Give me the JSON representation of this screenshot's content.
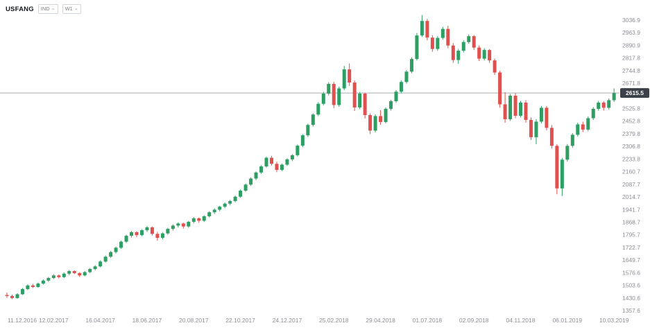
{
  "toolbar": {
    "symbol": "USFANG",
    "instrument_dropdown": "IND",
    "timeframe_dropdown": "W1"
  },
  "colors": {
    "up": "#2e9e63",
    "down": "#e0504e",
    "price_line": "#aaadb5",
    "badge_bg": "#3c4049",
    "badge_text": "#ffffff",
    "axis_text": "#8c8e96",
    "background": "#ffffff"
  },
  "price_axis": {
    "current_price_label": "2615.5"
  },
  "chart_data": {
    "type": "candlestick",
    "title": "USFANG weekly candlestick chart",
    "symbol": "USFANG",
    "timeframe": "W1",
    "current_price": 2615.5,
    "ylim": [
      1245.4,
      3153.1
    ],
    "grid": false,
    "y_ticks": [
      3036.9,
      2963.9,
      2890.9,
      2817.8,
      2744.8,
      2671.8,
      2598.8,
      2525.8,
      2452.8,
      2379.8,
      2306.8,
      2233.8,
      2160.7,
      2087.7,
      2014.7,
      1941.7,
      1868.7,
      1795.7,
      1722.7,
      1649.7,
      1576.6,
      1503.6,
      1430.6,
      1357.6
    ],
    "x_labels": [
      "11.12.2016",
      "12.02.2017",
      "16.04.2017",
      "18.06.2017",
      "20.08.2017",
      "22.10.2017",
      "24.12.2017",
      "25.02.2018",
      "29.04.2018",
      "01.07.2018",
      "02.09.2018",
      "04.11.2018",
      "06.01.2019",
      "10.03.2019"
    ],
    "x_label_weeks": [
      0,
      9,
      18,
      27,
      36,
      45,
      54,
      63,
      72,
      81,
      90,
      99,
      108,
      117
    ],
    "candles_format": [
      "open",
      "high",
      "low",
      "close"
    ],
    "candles": [
      [
        1448,
        1462,
        1432,
        1442
      ],
      [
        1442,
        1450,
        1424,
        1430
      ],
      [
        1430,
        1458,
        1426,
        1452
      ],
      [
        1452,
        1488,
        1448,
        1482
      ],
      [
        1482,
        1510,
        1476,
        1503
      ],
      [
        1503,
        1512,
        1488,
        1494
      ],
      [
        1494,
        1520,
        1490,
        1514
      ],
      [
        1514,
        1538,
        1508,
        1531
      ],
      [
        1531,
        1552,
        1524,
        1546
      ],
      [
        1546,
        1568,
        1540,
        1561
      ],
      [
        1561,
        1566,
        1544,
        1551
      ],
      [
        1551,
        1578,
        1546,
        1571
      ],
      [
        1571,
        1592,
        1562,
        1586
      ],
      [
        1586,
        1590,
        1568,
        1574
      ],
      [
        1574,
        1580,
        1552,
        1561
      ],
      [
        1561,
        1586,
        1556,
        1580
      ],
      [
        1580,
        1604,
        1574,
        1598
      ],
      [
        1598,
        1620,
        1590,
        1613
      ],
      [
        1613,
        1648,
        1608,
        1641
      ],
      [
        1641,
        1676,
        1635,
        1669
      ],
      [
        1669,
        1702,
        1662,
        1696
      ],
      [
        1696,
        1728,
        1688,
        1721
      ],
      [
        1721,
        1762,
        1714,
        1756
      ],
      [
        1756,
        1796,
        1748,
        1790
      ],
      [
        1790,
        1818,
        1780,
        1811
      ],
      [
        1811,
        1816,
        1782,
        1794
      ],
      [
        1794,
        1828,
        1788,
        1822
      ],
      [
        1822,
        1846,
        1812,
        1839
      ],
      [
        1839,
        1844,
        1792,
        1801
      ],
      [
        1801,
        1812,
        1762,
        1778
      ],
      [
        1778,
        1810,
        1770,
        1804
      ],
      [
        1804,
        1836,
        1796,
        1830
      ],
      [
        1830,
        1856,
        1820,
        1849
      ],
      [
        1849,
        1868,
        1838,
        1861
      ],
      [
        1861,
        1866,
        1832,
        1844
      ],
      [
        1844,
        1876,
        1836,
        1871
      ],
      [
        1871,
        1898,
        1862,
        1891
      ],
      [
        1891,
        1896,
        1866,
        1877
      ],
      [
        1877,
        1908,
        1870,
        1903
      ],
      [
        1903,
        1932,
        1896,
        1926
      ],
      [
        1926,
        1948,
        1916,
        1941
      ],
      [
        1941,
        1964,
        1932,
        1958
      ],
      [
        1958,
        1982,
        1950,
        1976
      ],
      [
        1976,
        1998,
        1966,
        1991
      ],
      [
        1991,
        2022,
        1984,
        2016
      ],
      [
        2016,
        2058,
        2010,
        2051
      ],
      [
        2051,
        2092,
        2044,
        2086
      ],
      [
        2086,
        2128,
        2078,
        2121
      ],
      [
        2121,
        2162,
        2112,
        2156
      ],
      [
        2156,
        2198,
        2148,
        2191
      ],
      [
        2191,
        2248,
        2184,
        2241
      ],
      [
        2241,
        2252,
        2196,
        2206
      ],
      [
        2206,
        2218,
        2158,
        2171
      ],
      [
        2171,
        2208,
        2164,
        2201
      ],
      [
        2201,
        2238,
        2194,
        2232
      ],
      [
        2232,
        2262,
        2222,
        2256
      ],
      [
        2256,
        2318,
        2248,
        2311
      ],
      [
        2311,
        2378,
        2302,
        2371
      ],
      [
        2371,
        2438,
        2362,
        2431
      ],
      [
        2431,
        2498,
        2422,
        2491
      ],
      [
        2491,
        2562,
        2482,
        2553
      ],
      [
        2553,
        2622,
        2544,
        2612
      ],
      [
        2612,
        2678,
        2602,
        2668
      ],
      [
        2668,
        2680,
        2528,
        2546
      ],
      [
        2546,
        2652,
        2536,
        2642
      ],
      [
        2642,
        2772,
        2632,
        2752
      ],
      [
        2752,
        2786,
        2656,
        2676
      ],
      [
        2676,
        2688,
        2512,
        2532
      ],
      [
        2532,
        2622,
        2522,
        2612
      ],
      [
        2612,
        2618,
        2468,
        2488
      ],
      [
        2488,
        2498,
        2378,
        2398
      ],
      [
        2398,
        2492,
        2388,
        2482
      ],
      [
        2482,
        2516,
        2432,
        2448
      ],
      [
        2448,
        2532,
        2440,
        2524
      ],
      [
        2524,
        2576,
        2514,
        2568
      ],
      [
        2568,
        2632,
        2558,
        2623
      ],
      [
        2623,
        2688,
        2614,
        2679
      ],
      [
        2679,
        2748,
        2670,
        2739
      ],
      [
        2739,
        2822,
        2730,
        2812
      ],
      [
        2812,
        2962,
        2804,
        2948
      ],
      [
        2948,
        3066,
        2940,
        3032
      ],
      [
        3032,
        3044,
        2920,
        2936
      ],
      [
        2936,
        2950,
        2854,
        2870
      ],
      [
        2870,
        2944,
        2860,
        2934
      ],
      [
        2934,
        2998,
        2924,
        2986
      ],
      [
        2986,
        3004,
        2874,
        2890
      ],
      [
        2890,
        2904,
        2790,
        2806
      ],
      [
        2806,
        2870,
        2784,
        2860
      ],
      [
        2860,
        2920,
        2850,
        2910
      ],
      [
        2910,
        2954,
        2900,
        2944
      ],
      [
        2944,
        2950,
        2864,
        2878
      ],
      [
        2878,
        2890,
        2800,
        2814
      ],
      [
        2814,
        2874,
        2804,
        2864
      ],
      [
        2864,
        2870,
        2790,
        2804
      ],
      [
        2804,
        2814,
        2720,
        2734
      ],
      [
        2734,
        2744,
        2530,
        2550
      ],
      [
        2550,
        2620,
        2444,
        2464
      ],
      [
        2464,
        2610,
        2454,
        2600
      ],
      [
        2600,
        2614,
        2470,
        2484
      ],
      [
        2484,
        2570,
        2474,
        2560
      ],
      [
        2560,
        2574,
        2444,
        2460
      ],
      [
        2460,
        2474,
        2344,
        2360
      ],
      [
        2360,
        2464,
        2320,
        2450
      ],
      [
        2450,
        2540,
        2440,
        2530
      ],
      [
        2530,
        2540,
        2400,
        2414
      ],
      [
        2414,
        2430,
        2294,
        2310
      ],
      [
        2310,
        2320,
        2030,
        2064
      ],
      [
        2064,
        2240,
        2020,
        2230
      ],
      [
        2230,
        2320,
        2220,
        2310
      ],
      [
        2310,
        2384,
        2300,
        2374
      ],
      [
        2374,
        2444,
        2364,
        2434
      ],
      [
        2434,
        2450,
        2390,
        2404
      ],
      [
        2404,
        2480,
        2394,
        2470
      ],
      [
        2470,
        2534,
        2460,
        2524
      ],
      [
        2524,
        2570,
        2514,
        2560
      ],
      [
        2560,
        2568,
        2514,
        2530
      ],
      [
        2530,
        2584,
        2520,
        2574
      ],
      [
        2574,
        2642,
        2564,
        2615.5
      ]
    ]
  }
}
